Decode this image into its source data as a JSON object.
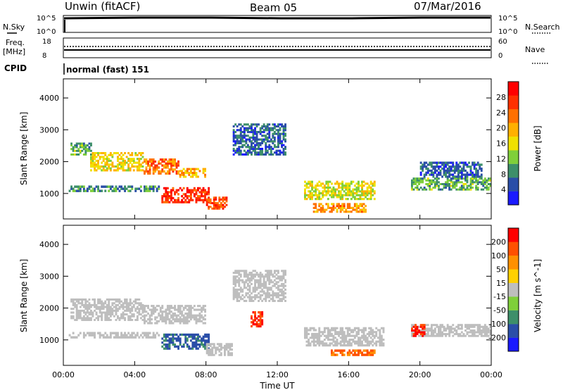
{
  "header": {
    "title": "Unwin (fitACF)",
    "beam": "Beam 05",
    "date": "07/Mar/2016"
  },
  "noise_panel": {
    "left_label": "N.Sky",
    "left_ticks": [
      "10^5",
      "10^0"
    ],
    "right_ticks": [
      "10^5",
      "10^0"
    ],
    "right_label": "N.Search"
  },
  "freq_panel": {
    "left_label_line1": "Freq.",
    "left_label_line2": "[MHz]",
    "left_ticks": [
      "18",
      "8"
    ],
    "right_ticks": [
      "60",
      "0"
    ],
    "right_label": "Nave"
  },
  "cpid": {
    "label": "CPID",
    "mode": "normal (fast) 151"
  },
  "x_axis": {
    "ticks": [
      "00:00",
      "04:00",
      "08:00",
      "12:00",
      "16:00",
      "20:00",
      "00:00"
    ],
    "label": "Time UT"
  },
  "colors": {
    "power_scale": [
      "#1a1aff",
      "#2a4ea8",
      "#3d8f6a",
      "#7fcf3a",
      "#f0e000",
      "#ffb000",
      "#ff7000",
      "#ff3000",
      "#ff0000"
    ],
    "velocity_scale": [
      "#1a1aff",
      "#2a4ea8",
      "#3d8f6a",
      "#7fcf3a",
      "#bebebe",
      "#ffd000",
      "#ff9000",
      "#ff5000",
      "#ff0000"
    ],
    "ground_scatter": "#bebebe"
  },
  "chart_data": [
    {
      "type": "heatmap",
      "title": "",
      "xlabel": "",
      "ylabel": "Slant Range [km]",
      "yticks": [
        "1000",
        "2000",
        "3000",
        "4000"
      ],
      "ylim": [
        200,
        4600
      ],
      "xlim": [
        0,
        24
      ],
      "colorbar": {
        "label": "Power [dB]",
        "ticks": [
          "28",
          "24",
          "20",
          "16",
          "12",
          "8",
          "4"
        ],
        "range": [
          0,
          30
        ]
      },
      "features": [
        {
          "t0": 0.4,
          "t1": 1.6,
          "r0": 2200,
          "r1": 2600,
          "value": 10
        },
        {
          "t0": 1.5,
          "t1": 4.5,
          "r0": 1700,
          "r1": 2300,
          "value": 16
        },
        {
          "t0": 4.5,
          "t1": 6.5,
          "r0": 1600,
          "r1": 2100,
          "value": 22
        },
        {
          "t0": 6.5,
          "t1": 8.0,
          "r0": 1500,
          "r1": 1800,
          "value": 18
        },
        {
          "t0": 5.5,
          "t1": 8.2,
          "r0": 700,
          "r1": 1200,
          "value": 26
        },
        {
          "t0": 8.0,
          "t1": 9.2,
          "r0": 500,
          "r1": 900,
          "value": 24
        },
        {
          "t0": 0.3,
          "t1": 5.5,
          "r0": 1050,
          "r1": 1250,
          "value": 8
        },
        {
          "t0": 9.5,
          "t1": 12.5,
          "r0": 2200,
          "r1": 3200,
          "value": 6
        },
        {
          "t0": 13.5,
          "t1": 17.5,
          "r0": 800,
          "r1": 1400,
          "value": 14
        },
        {
          "t0": 14.0,
          "t1": 17.0,
          "r0": 400,
          "r1": 700,
          "value": 20
        },
        {
          "t0": 19.5,
          "t1": 24.0,
          "r0": 1100,
          "r1": 1500,
          "value": 10
        },
        {
          "t0": 20.0,
          "t1": 23.5,
          "r0": 1500,
          "r1": 2000,
          "value": 6
        }
      ]
    },
    {
      "type": "heatmap",
      "title": "",
      "xlabel": "Time UT",
      "ylabel": "Slant Range [km]",
      "yticks": [
        "1000",
        "2000",
        "3000",
        "4000"
      ],
      "ylim": [
        200,
        4600
      ],
      "xlim": [
        0,
        24
      ],
      "colorbar": {
        "label": "Velocity [m s^-1]",
        "ticks": [
          "200",
          "100",
          "50",
          "15",
          "-15",
          "-50",
          "-100",
          "-200"
        ],
        "range": [
          -250,
          250
        ]
      },
      "features": [
        {
          "t0": 0.4,
          "t1": 4.5,
          "r0": 1600,
          "r1": 2300,
          "value": 0
        },
        {
          "t0": 4.5,
          "t1": 8.0,
          "r0": 1500,
          "r1": 2100,
          "value": 0
        },
        {
          "t0": 0.3,
          "t1": 5.5,
          "r0": 1050,
          "r1": 1250,
          "value": 0
        },
        {
          "t0": 5.5,
          "t1": 8.2,
          "r0": 700,
          "r1": 1200,
          "value": -150
        },
        {
          "t0": 8.0,
          "t1": 9.5,
          "r0": 500,
          "r1": 900,
          "value": 0
        },
        {
          "t0": 10.5,
          "t1": 11.2,
          "r0": 1400,
          "r1": 1900,
          "value": 200
        },
        {
          "t0": 9.5,
          "t1": 12.5,
          "r0": 2200,
          "r1": 3200,
          "value": 0
        },
        {
          "t0": 13.5,
          "t1": 18.0,
          "r0": 800,
          "r1": 1400,
          "value": 0
        },
        {
          "t0": 15.0,
          "t1": 17.5,
          "r0": 500,
          "r1": 700,
          "value": 150
        },
        {
          "t0": 19.5,
          "t1": 24.0,
          "r0": 1100,
          "r1": 1500,
          "value": 0
        },
        {
          "t0": 19.5,
          "t1": 20.3,
          "r0": 1100,
          "r1": 1500,
          "value": 200
        }
      ]
    }
  ]
}
